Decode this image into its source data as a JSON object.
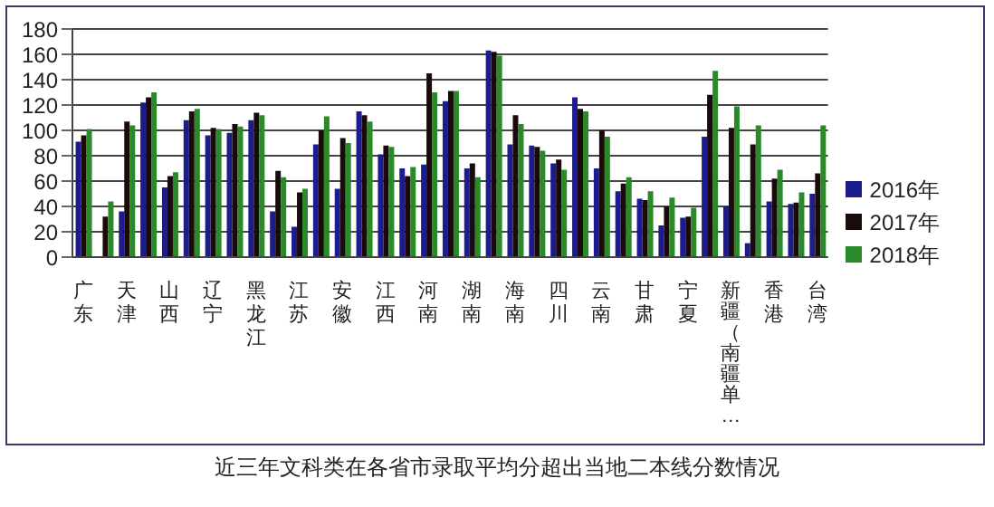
{
  "chart_data": {
    "type": "bar",
    "title": "近三年文科类在各省市录取平均分超出当地二本线分数情况",
    "categories": [
      "广东",
      null,
      "天津",
      null,
      "山西",
      null,
      "辽宁",
      null,
      "黑龙江",
      null,
      "江苏",
      null,
      "安徽",
      null,
      "江西",
      null,
      "河南",
      null,
      "湖南",
      null,
      "海南",
      null,
      "四川",
      null,
      "云南",
      null,
      "甘肃",
      null,
      "宁夏",
      null,
      "新疆（南疆单…",
      null,
      "香港",
      null,
      "台湾"
    ],
    "series": [
      {
        "name": "2016年",
        "color": "#1c1c8c",
        "values": [
          91,
          0,
          36,
          122,
          55,
          108,
          96,
          98,
          108,
          36,
          24,
          89,
          54,
          115,
          81,
          70,
          73,
          123,
          70,
          163,
          89,
          88,
          74,
          126,
          70,
          52,
          46,
          25,
          31,
          95,
          40,
          11,
          44,
          42,
          50
        ]
      },
      {
        "name": "2017年",
        "color": "#1a0a0a",
        "values": [
          96,
          32,
          107,
          126,
          64,
          115,
          102,
          105,
          114,
          68,
          51,
          100,
          94,
          112,
          88,
          64,
          145,
          131,
          74,
          162,
          112,
          87,
          77,
          117,
          100,
          58,
          45,
          40,
          32,
          128,
          102,
          89,
          62,
          43,
          66
        ]
      },
      {
        "name": "2018年",
        "color": "#2a8a2a",
        "values": [
          101,
          44,
          104,
          130,
          67,
          117,
          101,
          103,
          112,
          63,
          54,
          111,
          90,
          107,
          87,
          71,
          130,
          131,
          63,
          159,
          105,
          84,
          69,
          115,
          95,
          63,
          52,
          47,
          39,
          147,
          119,
          104,
          69,
          51,
          104
        ]
      }
    ],
    "ylim": [
      0,
      180
    ],
    "yticks": [
      0,
      20,
      40,
      60,
      80,
      100,
      120,
      140,
      160,
      180
    ],
    "grid": "y",
    "legend": "right"
  }
}
